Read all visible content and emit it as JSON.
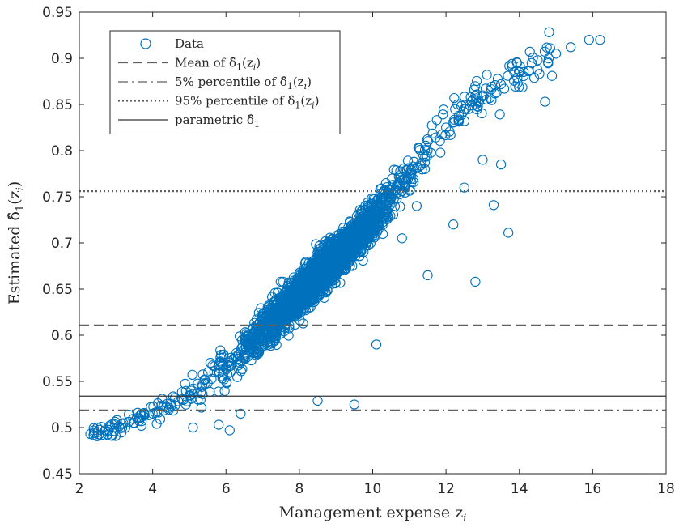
{
  "chart_data": {
    "type": "scatter",
    "xlabel": "Management expense z",
    "xlabel_sub": "i",
    "ylabel": "Estimated δ̂",
    "ylabel_sub": "1",
    "ylabel_arg": "(z",
    "ylabel_arg_sub": "i",
    "ylabel_close": ")",
    "xlim": [
      2,
      18
    ],
    "ylim": [
      0.45,
      0.95
    ],
    "x_ticks": [
      "2",
      "4",
      "6",
      "8",
      "10",
      "12",
      "14",
      "16",
      "18"
    ],
    "y_ticks": [
      "0.45",
      "0.5",
      "0.55",
      "0.6",
      "0.65",
      "0.7",
      "0.75",
      "0.8",
      "0.85",
      "0.9",
      "0.95"
    ],
    "grid": false,
    "legend_position": "top-left",
    "colors": {
      "data": "#0072BD",
      "lines": "#606060",
      "parametric": "#333333",
      "axes": "#262626"
    },
    "legend": [
      {
        "key": "data",
        "style": "marker",
        "label": "Data"
      },
      {
        "key": "mean",
        "style": "dashed",
        "label": "Mean of δ̂",
        "sub": "1",
        "tail": "(z",
        "tail_sub": "i",
        "tail_end": ")"
      },
      {
        "key": "p5",
        "style": "dashdot",
        "label": "5% percentile of δ̂",
        "sub": "1",
        "tail": "(z",
        "tail_sub": "i",
        "tail_end": ")"
      },
      {
        "key": "p95",
        "style": "dotted",
        "label": "95% percentile of δ̂",
        "sub": "1",
        "tail": "(z",
        "tail_sub": "i",
        "tail_end": ")"
      },
      {
        "key": "parametric",
        "style": "solid",
        "label": "parametric δ̂",
        "sub": "1",
        "tail": "",
        "tail_sub": "",
        "tail_end": ""
      }
    ],
    "hlines": [
      {
        "key": "mean",
        "y": 0.611,
        "style": "dashed"
      },
      {
        "key": "p5",
        "y": 0.519,
        "style": "dashdot"
      },
      {
        "key": "p95",
        "y": 0.756,
        "style": "dotted"
      },
      {
        "key": "parametric",
        "y": 0.534,
        "style": "solid"
      }
    ],
    "series": [
      {
        "name": "Data",
        "trend": {
          "x": [
            2.3,
            3,
            4,
            5,
            6,
            7,
            8,
            9,
            10,
            11,
            12,
            13,
            14,
            15,
            16.2
          ],
          "y": [
            0.493,
            0.5,
            0.515,
            0.535,
            0.565,
            0.605,
            0.645,
            0.685,
            0.725,
            0.775,
            0.825,
            0.86,
            0.885,
            0.905,
            0.92
          ]
        },
        "points": [
          [
            2.3,
            0.493
          ],
          [
            2.4,
            0.494
          ],
          [
            2.5,
            0.495
          ],
          [
            2.7,
            0.497
          ],
          [
            3.0,
            0.5
          ],
          [
            3.5,
            0.505
          ],
          [
            4.0,
            0.515
          ],
          [
            4.5,
            0.523
          ],
          [
            5.0,
            0.535
          ],
          [
            5.5,
            0.548
          ],
          [
            6.0,
            0.565
          ],
          [
            6.5,
            0.585
          ],
          [
            7.0,
            0.605
          ],
          [
            7.5,
            0.625
          ],
          [
            8.0,
            0.645
          ],
          [
            8.5,
            0.665
          ],
          [
            9.0,
            0.685
          ],
          [
            9.5,
            0.705
          ],
          [
            10.0,
            0.725
          ],
          [
            10.5,
            0.75
          ],
          [
            11.0,
            0.775
          ],
          [
            11.5,
            0.8
          ],
          [
            12.0,
            0.825
          ],
          [
            12.5,
            0.845
          ],
          [
            13.0,
            0.86
          ],
          [
            13.5,
            0.872
          ],
          [
            14.0,
            0.885
          ],
          [
            14.5,
            0.898
          ],
          [
            15.0,
            0.905
          ],
          [
            15.4,
            0.912
          ],
          [
            15.9,
            0.92
          ],
          [
            16.2,
            0.92
          ],
          [
            5.1,
            0.5
          ],
          [
            5.8,
            0.503
          ],
          [
            6.1,
            0.497
          ],
          [
            6.4,
            0.515
          ],
          [
            8.5,
            0.529
          ],
          [
            9.5,
            0.525
          ],
          [
            10.1,
            0.59
          ],
          [
            11.5,
            0.665
          ],
          [
            12.8,
            0.658
          ],
          [
            13.7,
            0.711
          ],
          [
            13.3,
            0.741
          ],
          [
            14.7,
            0.853
          ],
          [
            12.5,
            0.76
          ],
          [
            13.0,
            0.79
          ],
          [
            13.5,
            0.785
          ],
          [
            12.2,
            0.72
          ],
          [
            11.2,
            0.74
          ],
          [
            10.8,
            0.705
          ]
        ]
      }
    ]
  }
}
